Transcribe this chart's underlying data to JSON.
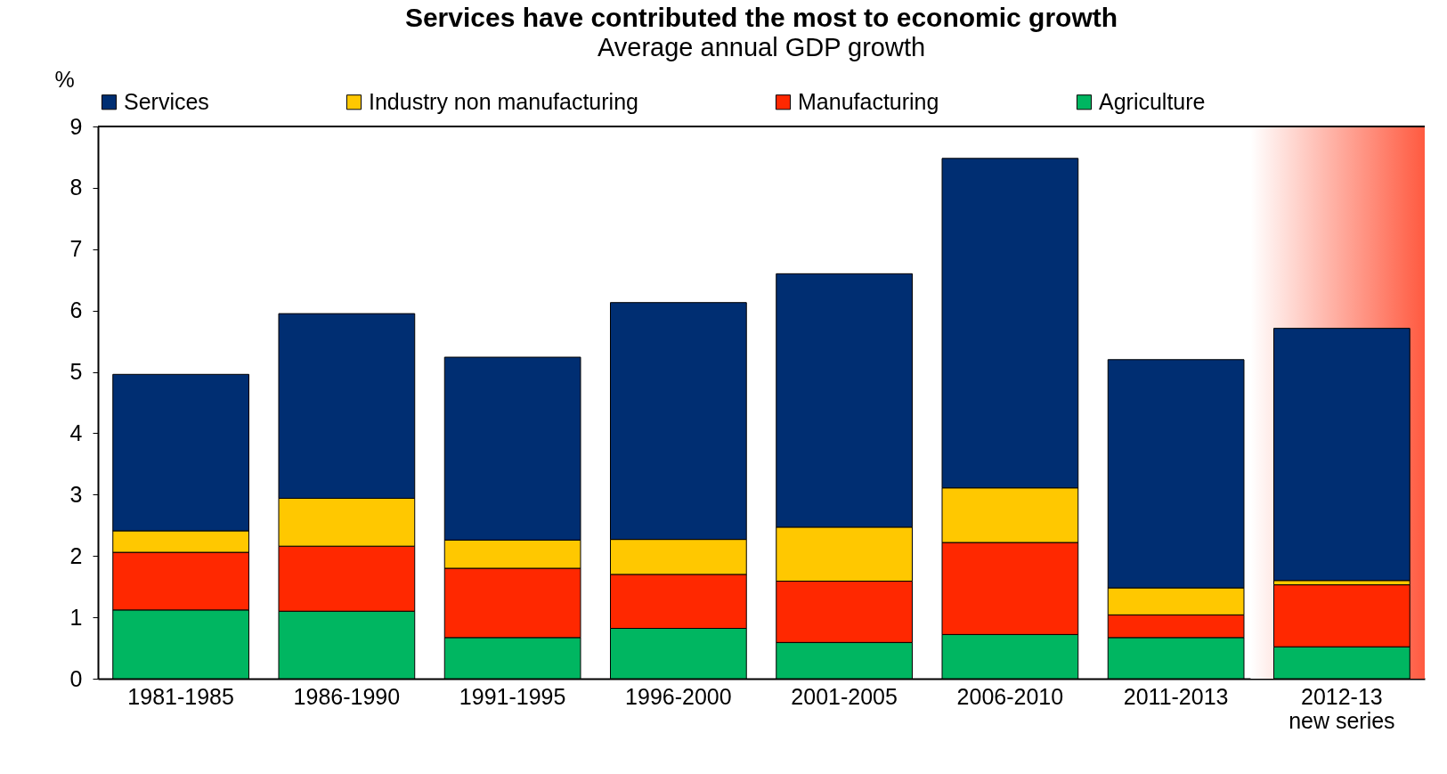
{
  "chart_data": {
    "type": "bar",
    "title": "Services have contributed the most to economic growth",
    "subtitle": "Average annual GDP growth",
    "ylabel": "%",
    "categories": [
      "1981-1985",
      "1986-1990",
      "1991-1995",
      "1996-2000",
      "2001-2005",
      "2006-2010",
      "2011-2013",
      "2012-13 new series"
    ],
    "stacked": true,
    "series": [
      {
        "name": "Agriculture",
        "color": "#00b661",
        "values": [
          1.12,
          1.1,
          0.67,
          0.82,
          0.59,
          0.72,
          0.67,
          0.52
        ]
      },
      {
        "name": "Manufacturing",
        "color": "#ff2800",
        "values": [
          0.94,
          1.06,
          1.13,
          0.88,
          1.0,
          1.5,
          0.37,
          1.01
        ]
      },
      {
        "name": "Industry non manufacturing",
        "color": "#ffc800",
        "values": [
          0.35,
          0.78,
          0.46,
          0.57,
          0.88,
          0.89,
          0.44,
          0.07
        ]
      },
      {
        "name": "Services",
        "color": "#002e72",
        "values": [
          2.55,
          3.01,
          2.98,
          3.86,
          4.13,
          5.37,
          3.72,
          4.11
        ]
      }
    ],
    "ylim": [
      0,
      9
    ],
    "yticks": [
      0,
      1,
      2,
      3,
      4,
      5,
      6,
      7,
      8,
      9
    ],
    "bands": [
      {
        "axis": "x",
        "from": "2012-13 new series",
        "to": "2012-13 new series",
        "color": "#ff5a40"
      }
    ],
    "legend": "top",
    "grid": false
  }
}
